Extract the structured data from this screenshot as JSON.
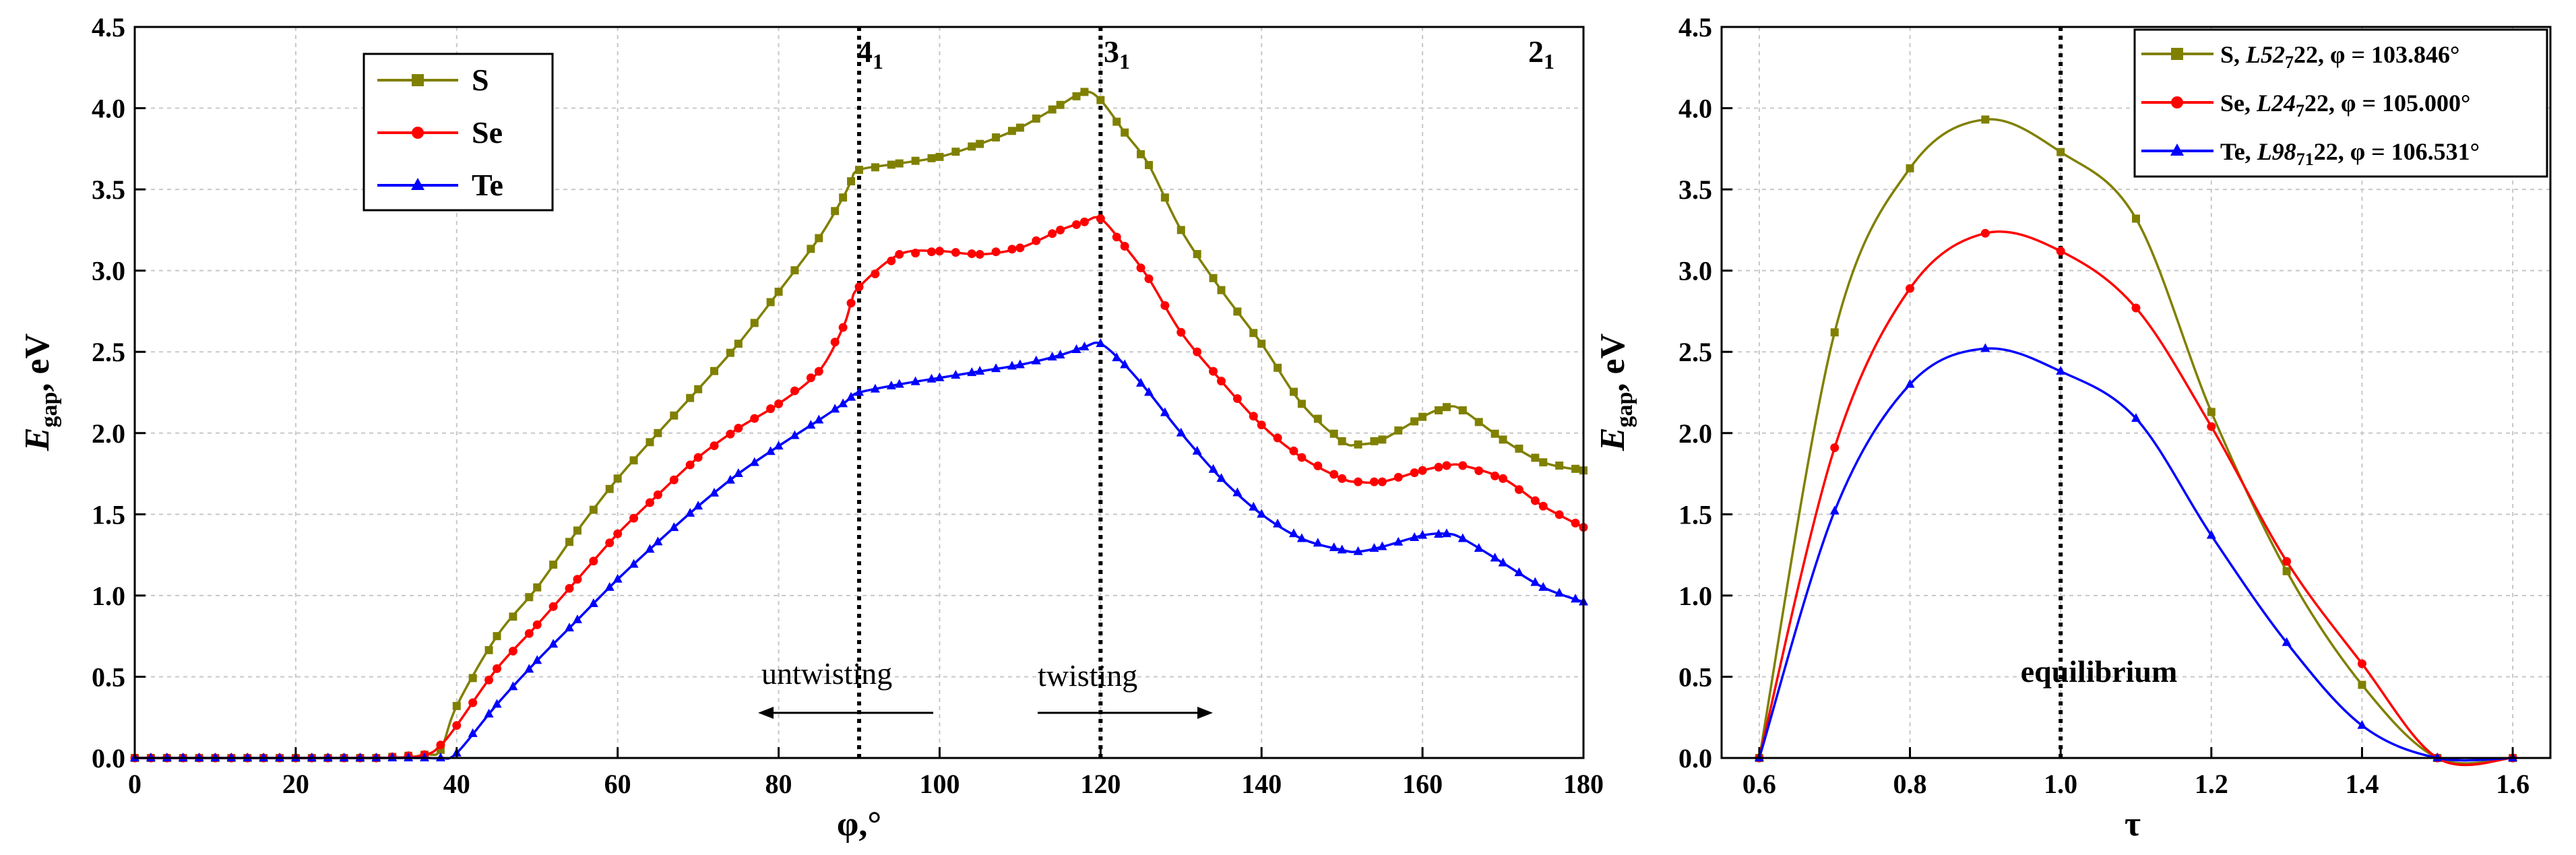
{
  "colors": {
    "S": "#808000",
    "Se": "#ff0000",
    "Te": "#0000ff",
    "grid": "#c8c8c8",
    "axis": "#000000"
  },
  "chart_data": [
    {
      "type": "line",
      "xlabel": "φ,°",
      "ylabel": "E",
      "ylabel_sub": "gap",
      "ylabel_unit": ", eV",
      "xlim": [
        0,
        180
      ],
      "ylim": [
        0,
        4.5
      ],
      "xticks": [
        "0",
        "20",
        "40",
        "60",
        "80",
        "100",
        "120",
        "140",
        "160",
        "180"
      ],
      "yticks": [
        "0.0",
        "0.5",
        "1.0",
        "1.5",
        "2.0",
        "2.5",
        "3.0",
        "3.5",
        "4.0",
        "4.5"
      ],
      "legend": [
        "S",
        "Se",
        "Te"
      ],
      "vlines": [
        {
          "x": 90,
          "label": "4",
          "sub": "1"
        },
        {
          "x": 120,
          "label": "3",
          "sub": "1"
        }
      ],
      "top_label": {
        "label": "2",
        "sub": "1"
      },
      "annotations": {
        "left": "untwisting",
        "right": "twisting"
      },
      "series": [
        {
          "name": "S",
          "marker": "square",
          "x": [
            0,
            30,
            36,
            38,
            40,
            45,
            50,
            55,
            60,
            65,
            70,
            75,
            80,
            85,
            88,
            89,
            90,
            95,
            100,
            105,
            110,
            115,
            118,
            120,
            123,
            126,
            130,
            135,
            140,
            145,
            150,
            152,
            155,
            160,
            163,
            165,
            170,
            175,
            180
          ],
          "y": [
            0,
            0,
            0.02,
            0.05,
            0.32,
            0.75,
            1.05,
            1.4,
            1.72,
            2.0,
            2.27,
            2.55,
            2.87,
            3.2,
            3.45,
            3.55,
            3.62,
            3.66,
            3.7,
            3.78,
            3.88,
            4.02,
            4.1,
            4.05,
            3.85,
            3.65,
            3.25,
            2.88,
            2.55,
            2.18,
            1.95,
            1.93,
            1.96,
            2.1,
            2.16,
            2.14,
            1.96,
            1.82,
            1.77
          ]
        },
        {
          "name": "Se",
          "marker": "circle",
          "x": [
            0,
            30,
            36,
            38,
            40,
            45,
            50,
            55,
            60,
            65,
            70,
            75,
            80,
            85,
            88,
            89,
            90,
            95,
            100,
            105,
            110,
            115,
            118,
            120,
            123,
            126,
            130,
            135,
            140,
            145,
            150,
            152,
            155,
            160,
            163,
            165,
            170,
            175,
            180
          ],
          "y": [
            0,
            0,
            0.02,
            0.08,
            0.2,
            0.55,
            0.82,
            1.1,
            1.38,
            1.62,
            1.85,
            2.03,
            2.18,
            2.38,
            2.65,
            2.8,
            2.9,
            3.1,
            3.12,
            3.1,
            3.14,
            3.25,
            3.3,
            3.32,
            3.15,
            2.95,
            2.62,
            2.32,
            2.05,
            1.85,
            1.72,
            1.7,
            1.7,
            1.77,
            1.8,
            1.8,
            1.72,
            1.55,
            1.42
          ]
        },
        {
          "name": "Te",
          "marker": "triangle",
          "x": [
            0,
            30,
            36,
            38,
            40,
            45,
            50,
            55,
            60,
            65,
            70,
            75,
            80,
            85,
            88,
            89,
            90,
            95,
            100,
            105,
            110,
            115,
            118,
            120,
            123,
            126,
            130,
            135,
            140,
            145,
            150,
            152,
            155,
            160,
            163,
            165,
            170,
            175,
            180
          ],
          "y": [
            0,
            0,
            0,
            0,
            0.03,
            0.33,
            0.6,
            0.85,
            1.1,
            1.33,
            1.55,
            1.75,
            1.92,
            2.08,
            2.18,
            2.22,
            2.25,
            2.3,
            2.34,
            2.38,
            2.42,
            2.48,
            2.53,
            2.55,
            2.42,
            2.25,
            2.0,
            1.72,
            1.5,
            1.35,
            1.28,
            1.27,
            1.3,
            1.37,
            1.38,
            1.35,
            1.2,
            1.05,
            0.96
          ]
        }
      ]
    },
    {
      "type": "line",
      "xlabel": "τ",
      "ylabel": "E",
      "ylabel_sub": "gap",
      "ylabel_unit": ", eV",
      "xlim": [
        0.55,
        1.65
      ],
      "ylim": [
        0,
        4.5
      ],
      "xticks": [
        "0.6",
        "0.8",
        "1.0",
        "1.2",
        "1.4",
        "1.6"
      ],
      "yticks": [
        "0.0",
        "0.5",
        "1.0",
        "1.5",
        "2.0",
        "2.5",
        "3.0",
        "3.5",
        "4.0",
        "4.5"
      ],
      "vline": {
        "x": 1.0,
        "label": "equilibrium"
      },
      "legend": [
        {
          "name": "S",
          "pre": "S, ",
          "code": "L52",
          "sub": "7",
          "post": "22, φ = 103.846°"
        },
        {
          "name": "Se",
          "pre": "Se, ",
          "code": "L24",
          "sub": "7",
          "post": "22, φ = 105.000°"
        },
        {
          "name": "Te",
          "pre": "Te, ",
          "code": "L98",
          "sub": "71",
          "post": "22, φ = 106.531°"
        }
      ],
      "series": [
        {
          "name": "S",
          "marker": "square",
          "x": [
            0.6,
            0.7,
            0.8,
            0.9,
            1.0,
            1.1,
            1.2,
            1.3,
            1.4,
            1.5,
            1.6
          ],
          "y": [
            0,
            2.62,
            3.63,
            3.93,
            3.73,
            3.32,
            2.13,
            1.15,
            0.45,
            0,
            0
          ]
        },
        {
          "name": "Se",
          "marker": "circle",
          "x": [
            0.6,
            0.7,
            0.8,
            0.9,
            1.0,
            1.1,
            1.2,
            1.3,
            1.4,
            1.5,
            1.6
          ],
          "y": [
            0,
            1.91,
            2.89,
            3.23,
            3.12,
            2.77,
            2.04,
            1.21,
            0.58,
            0,
            0
          ]
        },
        {
          "name": "Te",
          "marker": "triangle",
          "x": [
            0.6,
            0.7,
            0.8,
            0.9,
            1.0,
            1.1,
            1.2,
            1.3,
            1.4,
            1.5,
            1.6
          ],
          "y": [
            0,
            1.52,
            2.3,
            2.52,
            2.38,
            2.09,
            1.37,
            0.71,
            0.2,
            0,
            0
          ]
        }
      ]
    }
  ]
}
